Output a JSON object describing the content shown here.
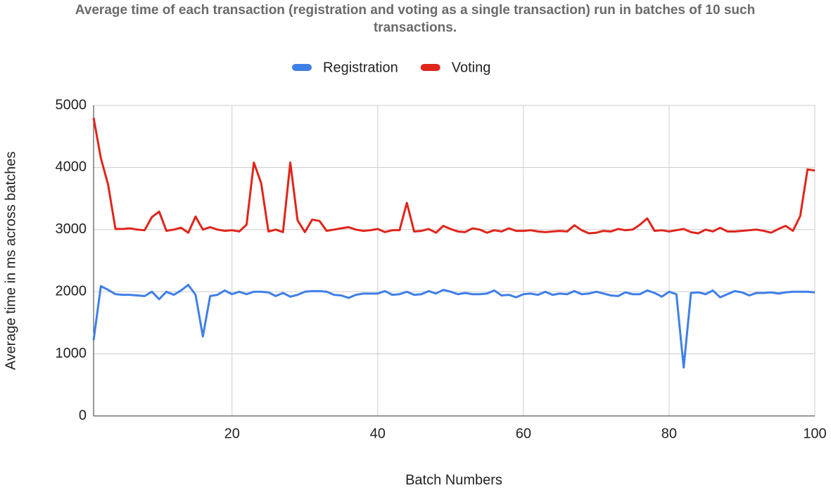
{
  "chart_data": {
    "type": "line",
    "title": "Average time of each transaction (registration and voting as a single transaction) run in batches of 10 such transactions.",
    "xlabel": "Batch Numbers",
    "ylabel": "Average time in ms across batches",
    "x": [
      1,
      2,
      3,
      4,
      5,
      6,
      7,
      8,
      9,
      10,
      11,
      12,
      13,
      14,
      15,
      16,
      17,
      18,
      19,
      20,
      21,
      22,
      23,
      24,
      25,
      26,
      27,
      28,
      29,
      30,
      31,
      32,
      33,
      34,
      35,
      36,
      37,
      38,
      39,
      40,
      41,
      42,
      43,
      44,
      45,
      46,
      47,
      48,
      49,
      50,
      51,
      52,
      53,
      54,
      55,
      56,
      57,
      58,
      59,
      60,
      61,
      62,
      63,
      64,
      65,
      66,
      67,
      68,
      69,
      70,
      71,
      72,
      73,
      74,
      75,
      76,
      77,
      78,
      79,
      80,
      81,
      82,
      83,
      84,
      85,
      86,
      87,
      88,
      89,
      90,
      91,
      92,
      93,
      94,
      95,
      96,
      97,
      98,
      99,
      100
    ],
    "series": [
      {
        "name": "Registration",
        "color": "#3f7fe8",
        "values": [
          1220,
          2090,
          2030,
          1960,
          1950,
          1950,
          1940,
          1930,
          2000,
          1880,
          2000,
          1950,
          2020,
          2110,
          1950,
          1280,
          1930,
          1950,
          2020,
          1960,
          2000,
          1960,
          2000,
          2000,
          1990,
          1930,
          1980,
          1920,
          1950,
          2000,
          2010,
          2010,
          2000,
          1950,
          1940,
          1900,
          1950,
          1970,
          1970,
          1970,
          2010,
          1950,
          1960,
          2000,
          1950,
          1960,
          2010,
          1970,
          2030,
          2000,
          1960,
          1980,
          1960,
          1960,
          1970,
          2020,
          1940,
          1950,
          1910,
          1960,
          1970,
          1950,
          2000,
          1950,
          1970,
          1960,
          2010,
          1960,
          1970,
          2000,
          1970,
          1940,
          1930,
          1990,
          1960,
          1960,
          2020,
          1980,
          1920,
          2000,
          1960,
          780,
          1980,
          1990,
          1960,
          2020,
          1910,
          1960,
          2010,
          1990,
          1940,
          1980,
          1980,
          1990,
          1970,
          1990,
          2000,
          2000,
          2000,
          1990
        ]
      },
      {
        "name": "Voting",
        "color": "#e0251b",
        "values": [
          4800,
          4150,
          3720,
          3010,
          3010,
          3020,
          3000,
          2990,
          3200,
          3290,
          2980,
          3000,
          3030,
          2950,
          3210,
          3000,
          3040,
          3000,
          2980,
          2990,
          2970,
          3080,
          4080,
          3750,
          2970,
          3000,
          2960,
          4080,
          3150,
          2960,
          3160,
          3140,
          2980,
          3000,
          3020,
          3040,
          3000,
          2980,
          2990,
          3010,
          2960,
          2990,
          2990,
          3430,
          2970,
          2980,
          3010,
          2950,
          3060,
          3010,
          2970,
          2960,
          3020,
          3000,
          2950,
          2990,
          2970,
          3020,
          2980,
          2980,
          2990,
          2970,
          2960,
          2970,
          2980,
          2970,
          3070,
          2990,
          2940,
          2950,
          2980,
          2970,
          3010,
          2990,
          3000,
          3080,
          3180,
          2980,
          2990,
          2970,
          2990,
          3010,
          2960,
          2940,
          3000,
          2970,
          3030,
          2970,
          2970,
          2980,
          2990,
          3000,
          2980,
          2950,
          3010,
          3060,
          2980,
          3220,
          3970,
          3950
        ]
      }
    ],
    "xlim": [
      1,
      100
    ],
    "xticks": [
      20,
      40,
      60,
      80,
      100
    ],
    "ylim": [
      0,
      5000
    ],
    "yticks": [
      0,
      1000,
      2000,
      3000,
      4000,
      5000
    ],
    "grid": true,
    "legend": "top"
  }
}
